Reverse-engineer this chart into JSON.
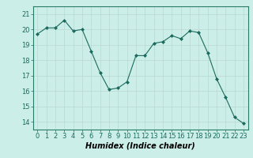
{
  "x": [
    0,
    1,
    2,
    3,
    4,
    5,
    6,
    7,
    8,
    9,
    10,
    11,
    12,
    13,
    14,
    15,
    16,
    17,
    18,
    19,
    20,
    21,
    22,
    23
  ],
  "y": [
    19.7,
    20.1,
    20.1,
    20.6,
    19.9,
    20.0,
    18.6,
    17.2,
    16.1,
    16.2,
    16.6,
    18.3,
    18.3,
    19.1,
    19.2,
    19.6,
    19.4,
    19.9,
    19.8,
    18.5,
    16.8,
    15.6,
    14.3,
    13.9
  ],
  "line_color": "#1a6b5e",
  "marker": "D",
  "markersize": 2.0,
  "linewidth": 0.8,
  "bg_color": "#cceee8",
  "grid_color": "#b8d8d0",
  "xlabel": "Humidex (Indice chaleur)",
  "xlabel_fontsize": 7,
  "tick_fontsize": 6,
  "ylim": [
    13.5,
    21.5
  ],
  "yticks": [
    14,
    15,
    16,
    17,
    18,
    19,
    20,
    21
  ],
  "xticks": [
    0,
    1,
    2,
    3,
    4,
    5,
    6,
    7,
    8,
    9,
    10,
    11,
    12,
    13,
    14,
    15,
    16,
    17,
    18,
    19,
    20,
    21,
    22,
    23
  ],
  "xlim": [
    -0.5,
    23.5
  ]
}
